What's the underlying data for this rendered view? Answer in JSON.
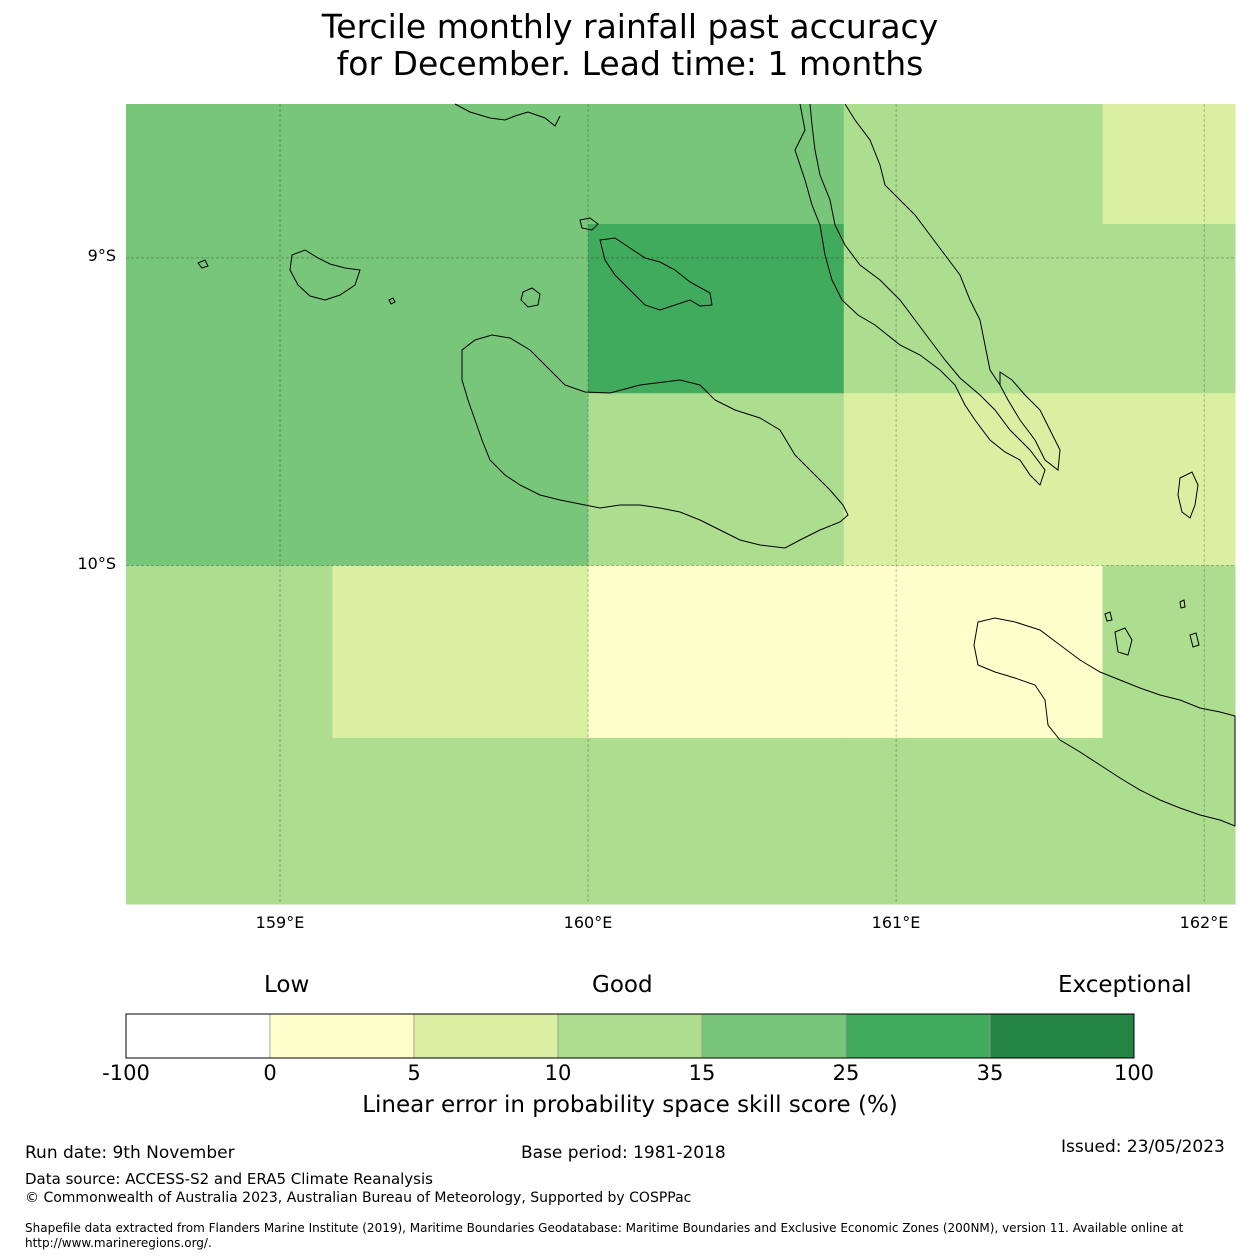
{
  "title": {
    "line1": "Tercile monthly rainfall past accuracy",
    "line2": "for December. Lead time: 1 months"
  },
  "map": {
    "lat_labels": [
      "9°S",
      "10°S"
    ],
    "lon_labels": [
      "159°E",
      "160°E",
      "161°E",
      "162°E"
    ],
    "extent": {
      "lon_min": 158.5,
      "lon_max": 162.1,
      "lat_max": -8.5,
      "lat_min": -11.1
    },
    "grid": {
      "lon_edges": [
        158.5,
        159.17,
        160.0,
        160.83,
        161.67,
        162.1
      ],
      "lat_edges": [
        -8.5,
        -8.89,
        -9.44,
        -10.0,
        -10.56,
        -11.1
      ],
      "comment": "cell values are skill score category index (0=Low ... 6=Exceptional)",
      "categories": [
        [
          4,
          4,
          4,
          3,
          2
        ],
        [
          4,
          4,
          5,
          3,
          3
        ],
        [
          4,
          4,
          3,
          2,
          2
        ],
        [
          3,
          2,
          1,
          1,
          3
        ],
        [
          3,
          3,
          3,
          3,
          3
        ]
      ]
    }
  },
  "legend": {
    "words": {
      "low": "Low",
      "good": "Good",
      "exceptional": "Exceptional"
    },
    "bins": [
      {
        "color": "#ffffff"
      },
      {
        "color": "#ffffcc"
      },
      {
        "color": "#d9f0a3"
      },
      {
        "color": "#addd8e"
      },
      {
        "color": "#78c679"
      },
      {
        "color": "#41ab5d"
      },
      {
        "color": "#238443"
      }
    ],
    "tick_labels": [
      "-100",
      "0",
      "5",
      "10",
      "15",
      "25",
      "35",
      "100"
    ],
    "caption": "Linear error in probability space skill score (%)"
  },
  "footer": {
    "run_date": "Run date: 9th November",
    "base_period": "Base period: 1981-2018",
    "issued": "Issued: 23/05/2023",
    "data_source": "Data source: ACCESS-S2 and ERA5 Climate Reanalysis",
    "copyright": "© Commonwealth of Australia 2023, Australian Bureau of Meteorology, Supported by COSPPac",
    "shapefile_line1": "Shapefile data extracted from Flanders Marine Institute (2019), Maritime Boundaries Geodatabase: Maritime Boundaries and Exclusive Economic Zones (200NM), version 11. Available online at",
    "shapefile_line2": "http://www.marineregions.org/."
  }
}
